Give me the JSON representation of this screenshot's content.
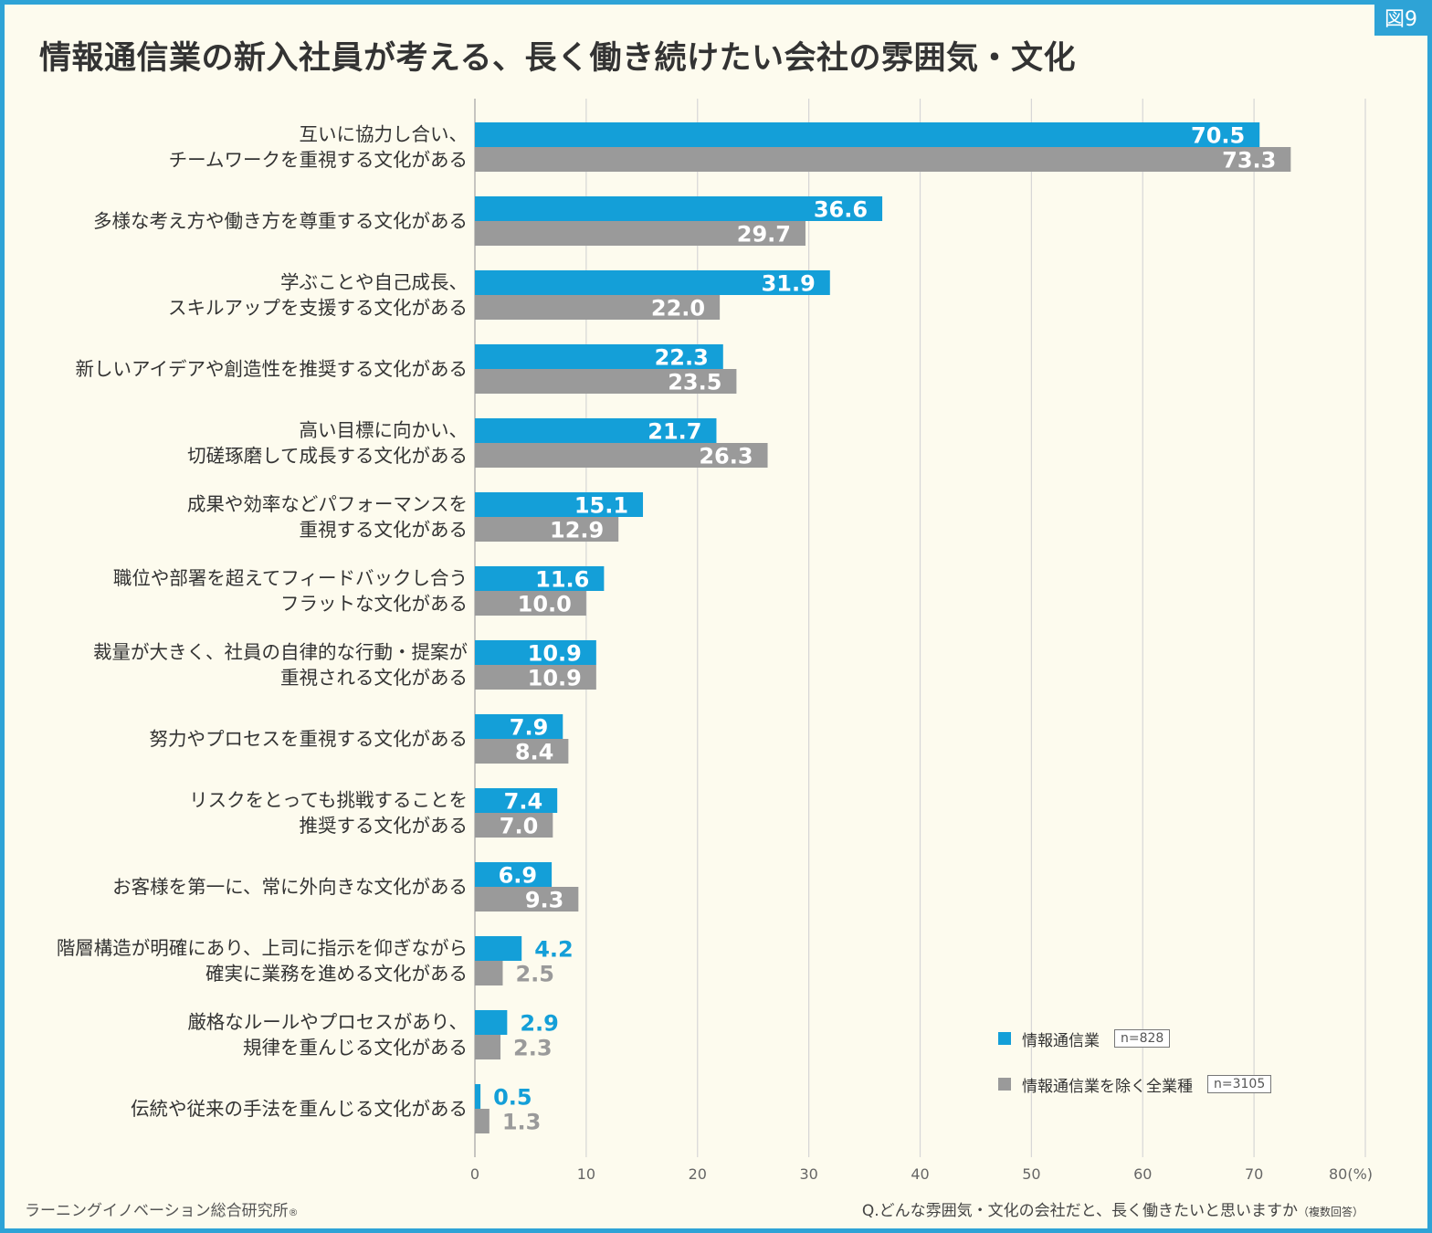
{
  "figure_label": "図9",
  "title": "情報通信業の新入社員が考える、長く働き続けたい会社の雰囲気・文化",
  "colors": {
    "series1": "#149fd8",
    "series2": "#9a9a9a",
    "frame": "#2ea3d6",
    "background": "#fdfbee"
  },
  "chart_data": {
    "type": "bar",
    "orientation": "horizontal",
    "title": "情報通信業の新入社員が考える、長く働き続けたい会社の雰囲気・文化",
    "categories": [
      [
        "互いに協力し合い、",
        "チームワークを重視する文化がある"
      ],
      [
        "多様な考え方や働き方を尊重する文化がある"
      ],
      [
        "学ぶことや自己成長、",
        "スキルアップを支援する文化がある"
      ],
      [
        "新しいアイデアや創造性を推奨する文化がある"
      ],
      [
        "高い目標に向かい、",
        "切磋琢磨して成長する文化がある"
      ],
      [
        "成果や効率などパフォーマンスを",
        "重視する文化がある"
      ],
      [
        "職位や部署を超えてフィードバックし合う",
        "フラットな文化がある"
      ],
      [
        "裁量が大きく、社員の自律的な行動・提案が",
        "重視される文化がある"
      ],
      [
        "努力やプロセスを重視する文化がある"
      ],
      [
        "リスクをとっても挑戦することを",
        "推奨する文化がある"
      ],
      [
        "お客様を第一に、常に外向きな文化がある"
      ],
      [
        "階層構造が明確にあり、上司に指示を仰ぎながら",
        "確実に業務を進める文化がある"
      ],
      [
        "厳格なルールやプロセスがあり、",
        "規律を重んじる文化がある"
      ],
      [
        "伝統や従来の手法を重んじる文化がある"
      ]
    ],
    "series": [
      {
        "name": "情報通信業",
        "n": "n=828",
        "values": [
          70.5,
          36.6,
          31.9,
          22.3,
          21.7,
          15.1,
          11.6,
          10.9,
          7.9,
          7.4,
          6.9,
          4.2,
          2.9,
          0.5
        ]
      },
      {
        "name": "情報通信業を除く全業種",
        "n": "n=3105",
        "values": [
          73.3,
          29.7,
          22.0,
          23.5,
          26.3,
          12.9,
          10.0,
          10.9,
          8.4,
          7.0,
          9.3,
          2.5,
          2.3,
          1.3
        ]
      }
    ],
    "xlim": [
      0,
      80
    ],
    "xticks": [
      0,
      10,
      20,
      30,
      40,
      50,
      60,
      70,
      80
    ],
    "xtick_last_label": "80(%)",
    "grid": true,
    "legend": "bottom-right"
  },
  "footer": {
    "source": "ラーニングイノベーション総合研究所",
    "registered_mark": "®",
    "question": "Q.どんな雰囲気・文化の会社だと、長く働きたいと思いますか",
    "question_note": "（複数回答）"
  }
}
